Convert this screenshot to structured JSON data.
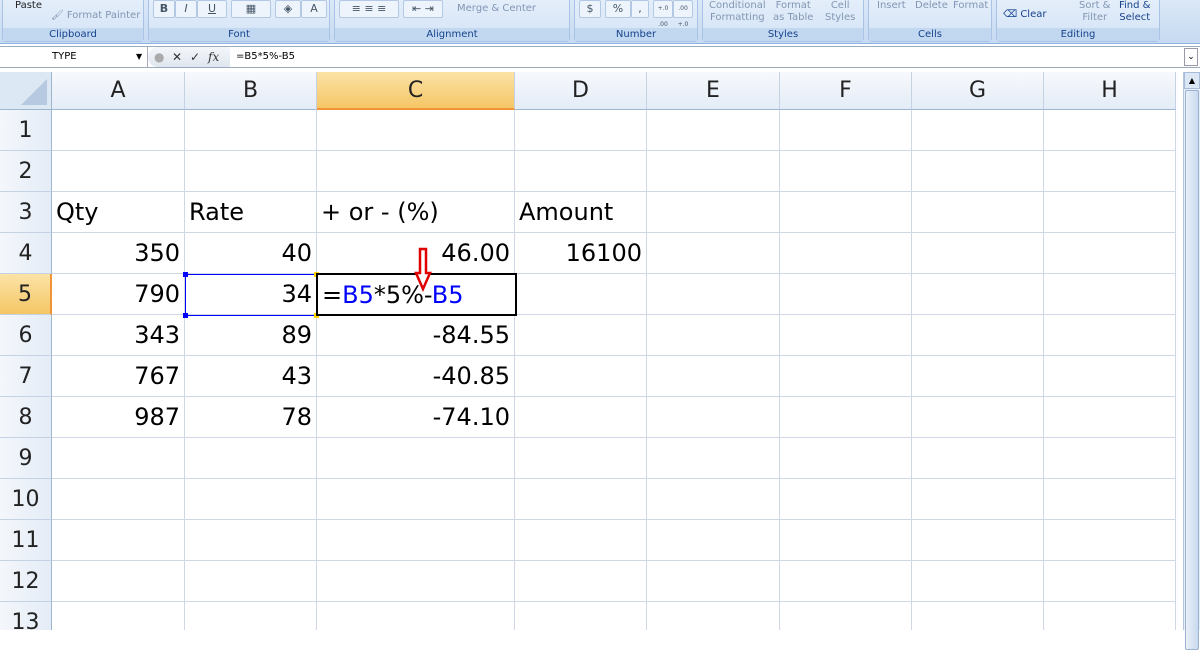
{
  "ribbon": {
    "clipboard": {
      "label": "Clipboard",
      "paste": "Paste",
      "format_painter": "Format Painter"
    },
    "font": {
      "label": "Font",
      "bold": "B",
      "italic": "I",
      "underline": "U",
      "font_color": "A"
    },
    "alignment": {
      "label": "Alignment",
      "merge_center": "Merge & Center"
    },
    "number": {
      "label": "Number",
      "currency": "$",
      "percent": "%",
      "comma": ",",
      "inc_decimal": "+.0 .00",
      "dec_decimal": ".00 +.0"
    },
    "styles": {
      "label": "Styles",
      "conditional_1": "Conditional",
      "conditional_2": "Formatting",
      "format_table_1": "Format",
      "format_table_2": "as Table",
      "cell_styles_1": "Cell",
      "cell_styles_2": "Styles"
    },
    "cells": {
      "label": "Cells",
      "insert": "Insert",
      "delete": "Delete",
      "format": "Format"
    },
    "editing": {
      "label": "Editing",
      "clear": "Clear",
      "sort_1": "Sort &",
      "sort_2": "Filter",
      "find_1": "Find &",
      "find_2": "Select"
    }
  },
  "formula_bar": {
    "name_box": "TYPE",
    "cancel": "✕",
    "enter": "✓",
    "fx": "fx",
    "formula": "=B5*5%-B5"
  },
  "columns": [
    "A",
    "B",
    "C",
    "D",
    "E",
    "F",
    "G",
    "H"
  ],
  "selected_column": "C",
  "rows": [
    "1",
    "2",
    "3",
    "4",
    "5",
    "6",
    "7",
    "8",
    "9",
    "10",
    "11",
    "12",
    "13"
  ],
  "selected_row": "5",
  "cells": [
    {
      "ref": "A3",
      "col": 0,
      "row": 2,
      "value": "Qty",
      "align": "left"
    },
    {
      "ref": "B3",
      "col": 1,
      "row": 2,
      "value": "Rate",
      "align": "left"
    },
    {
      "ref": "C3",
      "col": 2,
      "row": 2,
      "value": "+ or - (%)",
      "align": "left"
    },
    {
      "ref": "D3",
      "col": 3,
      "row": 2,
      "value": "Amount",
      "align": "left"
    },
    {
      "ref": "A4",
      "col": 0,
      "row": 3,
      "value": "350",
      "align": "right"
    },
    {
      "ref": "B4",
      "col": 1,
      "row": 3,
      "value": "40",
      "align": "right"
    },
    {
      "ref": "C4",
      "col": 2,
      "row": 3,
      "value": "46.00",
      "align": "right"
    },
    {
      "ref": "D4",
      "col": 3,
      "row": 3,
      "value": "16100",
      "align": "right"
    },
    {
      "ref": "A5",
      "col": 0,
      "row": 4,
      "value": "790",
      "align": "right"
    },
    {
      "ref": "B5",
      "col": 1,
      "row": 4,
      "value": "34",
      "align": "right"
    },
    {
      "ref": "A6",
      "col": 0,
      "row": 5,
      "value": "343",
      "align": "right"
    },
    {
      "ref": "B6",
      "col": 1,
      "row": 5,
      "value": "89",
      "align": "right"
    },
    {
      "ref": "C6",
      "col": 2,
      "row": 5,
      "value": "-84.55",
      "align": "right"
    },
    {
      "ref": "A7",
      "col": 0,
      "row": 6,
      "value": "767",
      "align": "right"
    },
    {
      "ref": "B7",
      "col": 1,
      "row": 6,
      "value": "43",
      "align": "right"
    },
    {
      "ref": "C7",
      "col": 2,
      "row": 6,
      "value": "-40.85",
      "align": "right"
    },
    {
      "ref": "A8",
      "col": 0,
      "row": 7,
      "value": "987",
      "align": "right"
    },
    {
      "ref": "B8",
      "col": 1,
      "row": 7,
      "value": "78",
      "align": "right"
    },
    {
      "ref": "C8",
      "col": 2,
      "row": 7,
      "value": "-74.10",
      "align": "right"
    }
  ],
  "editing_cell": {
    "ref": "C5",
    "parts": [
      "=",
      "B5",
      "*5%-",
      "B5"
    ]
  },
  "colors": {
    "reference": "#0000ff",
    "arrow": "#e00000",
    "selection_header": "#f5c665"
  }
}
